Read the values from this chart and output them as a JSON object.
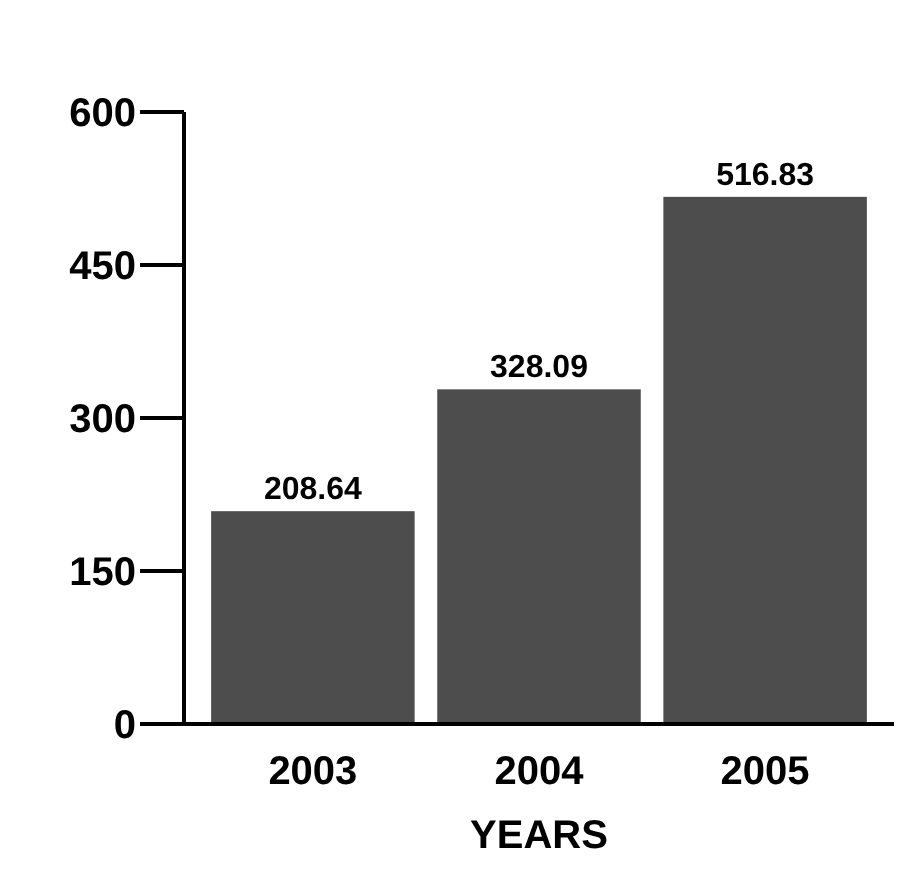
{
  "chart_data": {
    "type": "bar",
    "xlabel": "YEARS",
    "categories": [
      "2003",
      "2004",
      "2005"
    ],
    "values": [
      208.64,
      328.09,
      516.83
    ],
    "color": "#4d4d4d",
    "ylim": [
      0,
      600
    ],
    "yticks": [
      0,
      150,
      300,
      450,
      600
    ],
    "data_labels": true,
    "grid": false
  }
}
